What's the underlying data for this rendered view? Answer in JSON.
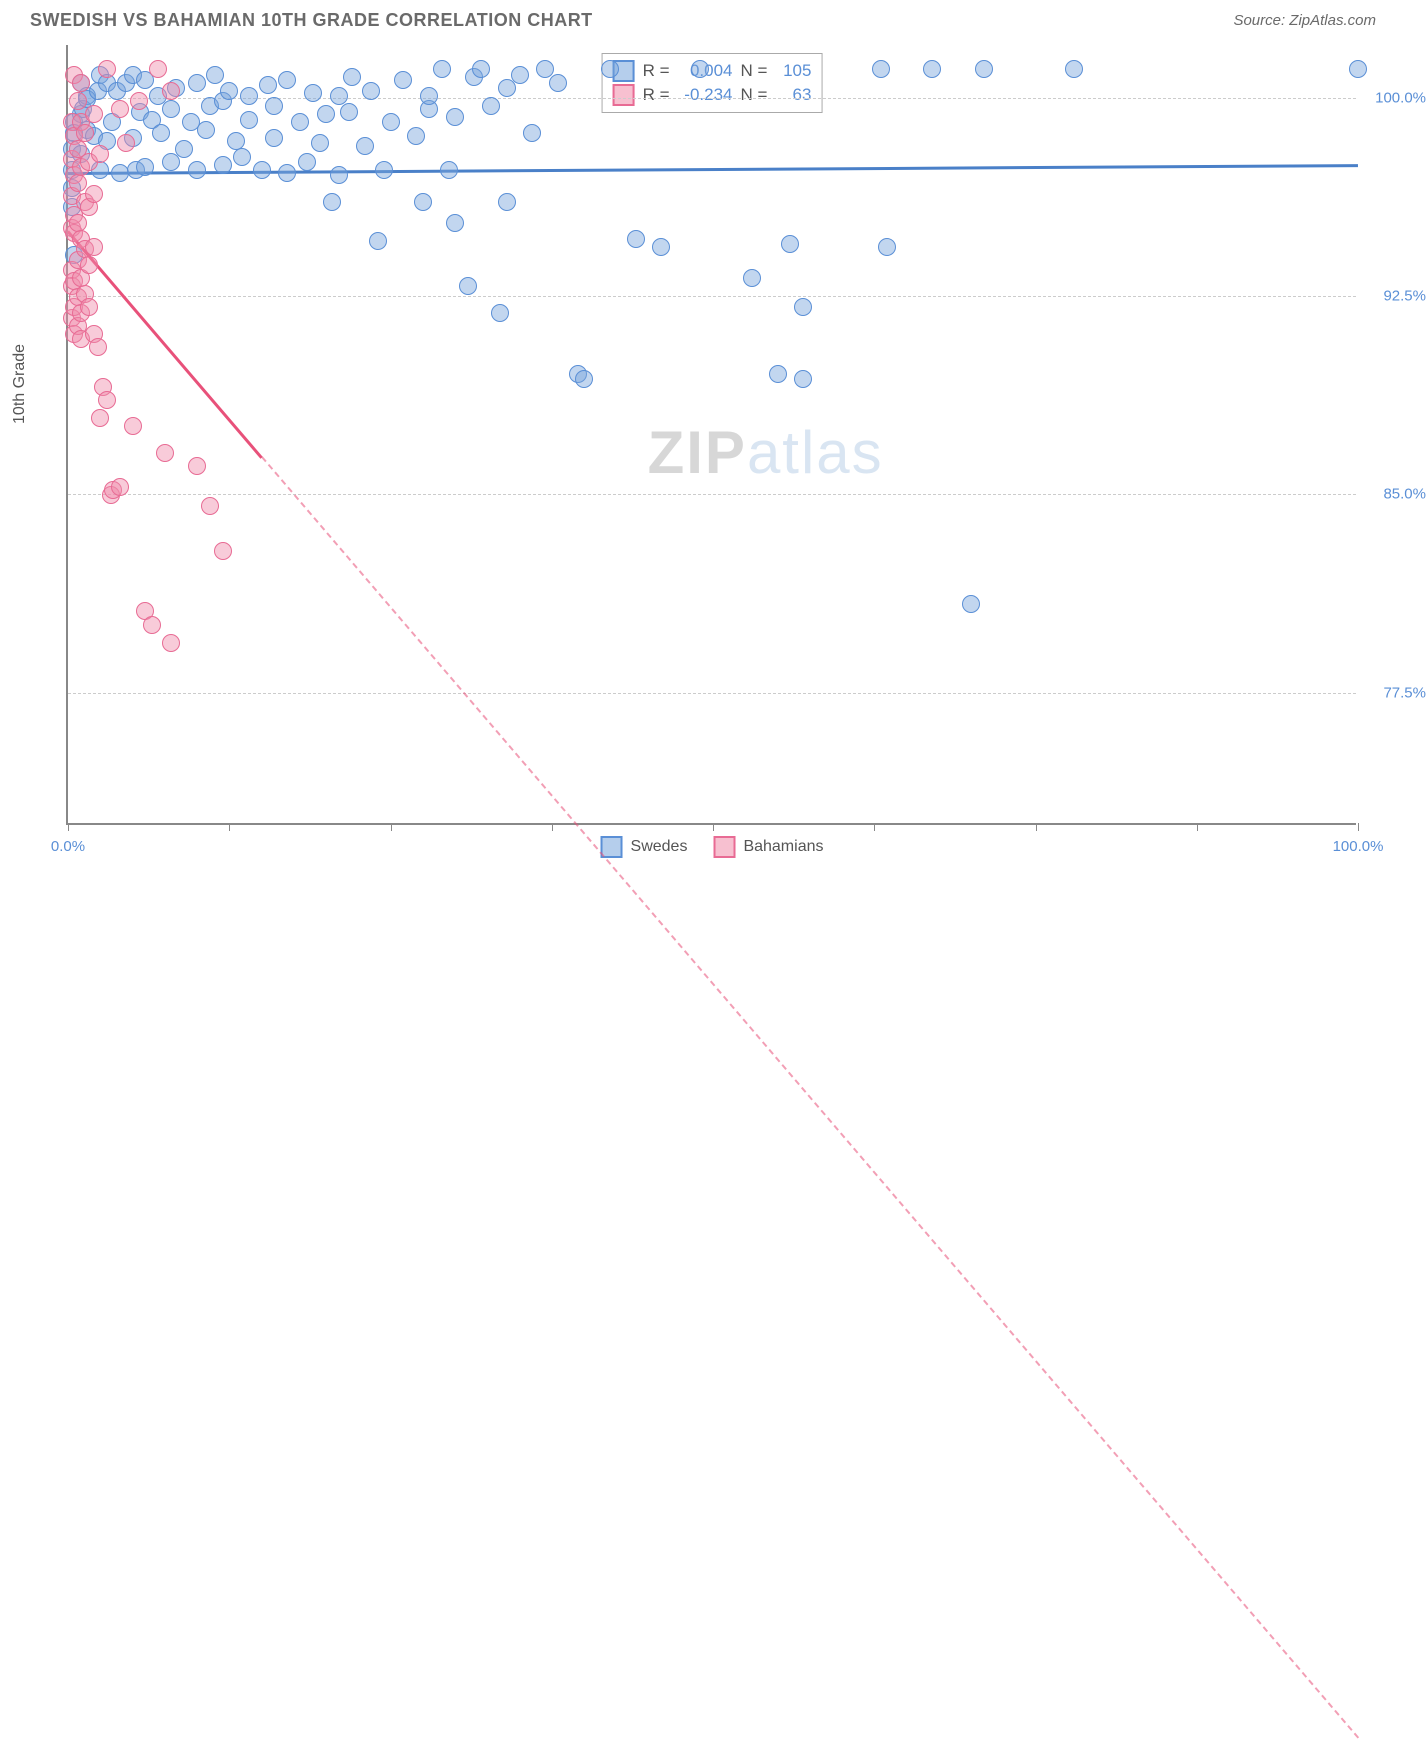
{
  "header": {
    "title": "SWEDISH VS BAHAMIAN 10TH GRADE CORRELATION CHART",
    "source": "Source: ZipAtlas.com"
  },
  "chart": {
    "type": "scatter",
    "ylabel": "10th Grade",
    "xlim": [
      0,
      100
    ],
    "ylim": [
      72.5,
      102
    ],
    "xticks": [
      0,
      12.5,
      25,
      37.5,
      50,
      62.5,
      75,
      87.5,
      100
    ],
    "xtick_labels": {
      "0": "0.0%",
      "100": "100.0%"
    },
    "yticks": [
      77.5,
      85.0,
      92.5,
      100.0
    ],
    "ytick_labels": [
      "77.5%",
      "85.0%",
      "92.5%",
      "100.0%"
    ],
    "background_color": "#ffffff",
    "grid_color": "#cccccc",
    "axis_color": "#888888",
    "label_fontsize": 16,
    "tick_color": "#5a8fd6",
    "watermark": {
      "bold": "ZIP",
      "light": "atlas"
    },
    "series": [
      {
        "name": "Swedes",
        "marker_color_fill": "rgba(120,165,220,0.45)",
        "marker_color_stroke": "#5a8fd6",
        "marker_size": 18,
        "trend": {
          "y": 97.2,
          "slope": 0.003,
          "color": "#4a80c8",
          "solid_until": 100
        },
        "R": "0.004",
        "N": "105",
        "legend_fill": "rgba(120,165,220,0.55)",
        "legend_stroke": "#5a8fd6",
        "points": [
          [
            0.3,
            97.2
          ],
          [
            0.3,
            96.5
          ],
          [
            0.3,
            95.8
          ],
          [
            0.3,
            98.0
          ],
          [
            0.5,
            99.0
          ],
          [
            0.5,
            94.0
          ],
          [
            0.5,
            98.6
          ],
          [
            1,
            97.8
          ],
          [
            1,
            99.3
          ],
          [
            1,
            100.5
          ],
          [
            1.2,
            99.5
          ],
          [
            1.5,
            100.0
          ],
          [
            1.5,
            98.7
          ],
          [
            1.5,
            99.9
          ],
          [
            2,
            98.5
          ],
          [
            2.3,
            100.2
          ],
          [
            2.5,
            97.2
          ],
          [
            2.5,
            100.8
          ],
          [
            3,
            98.3
          ],
          [
            3,
            100.5
          ],
          [
            3.4,
            99.0
          ],
          [
            3.8,
            100.2
          ],
          [
            4,
            97.1
          ],
          [
            4.5,
            100.5
          ],
          [
            5,
            98.4
          ],
          [
            5,
            100.8
          ],
          [
            5.3,
            97.2
          ],
          [
            5.6,
            99.4
          ],
          [
            6,
            100.6
          ],
          [
            6,
            97.3
          ],
          [
            6.5,
            99.1
          ],
          [
            7,
            100.0
          ],
          [
            7.2,
            98.6
          ],
          [
            8,
            97.5
          ],
          [
            8,
            99.5
          ],
          [
            8.4,
            100.3
          ],
          [
            9,
            98.0
          ],
          [
            9.5,
            99.0
          ],
          [
            10,
            100.5
          ],
          [
            10,
            97.2
          ],
          [
            10.7,
            98.7
          ],
          [
            11,
            99.6
          ],
          [
            11.4,
            100.8
          ],
          [
            12,
            97.4
          ],
          [
            12,
            99.8
          ],
          [
            12.5,
            100.2
          ],
          [
            13,
            98.3
          ],
          [
            13.5,
            97.7
          ],
          [
            14,
            100.0
          ],
          [
            14,
            99.1
          ],
          [
            15,
            97.2
          ],
          [
            15.5,
            100.4
          ],
          [
            16,
            98.4
          ],
          [
            16,
            99.6
          ],
          [
            17,
            97.1
          ],
          [
            17,
            100.6
          ],
          [
            18,
            99.0
          ],
          [
            18.5,
            97.5
          ],
          [
            19,
            100.1
          ],
          [
            19.5,
            98.2
          ],
          [
            20,
            99.3
          ],
          [
            20.5,
            96.0
          ],
          [
            21,
            100.0
          ],
          [
            21,
            97.0
          ],
          [
            21.8,
            99.4
          ],
          [
            22,
            100.7
          ],
          [
            23,
            98.1
          ],
          [
            23.5,
            100.2
          ],
          [
            24,
            94.5
          ],
          [
            24.5,
            97.2
          ],
          [
            25,
            99.0
          ],
          [
            26,
            100.6
          ],
          [
            27,
            98.5
          ],
          [
            27.5,
            96.0
          ],
          [
            28,
            99.5
          ],
          [
            28,
            100.0
          ],
          [
            29,
            101.0
          ],
          [
            29.5,
            97.2
          ],
          [
            30,
            99.2
          ],
          [
            30,
            95.2
          ],
          [
            31,
            92.8
          ],
          [
            31.5,
            100.7
          ],
          [
            32,
            101.0
          ],
          [
            32.8,
            99.6
          ],
          [
            33.5,
            91.8
          ],
          [
            34,
            96.0
          ],
          [
            34,
            100.3
          ],
          [
            35,
            100.8
          ],
          [
            36,
            98.6
          ],
          [
            37,
            101.0
          ],
          [
            38,
            100.5
          ],
          [
            39.5,
            89.5
          ],
          [
            40,
            89.3
          ],
          [
            42,
            101.0
          ],
          [
            44,
            94.6
          ],
          [
            46,
            94.3
          ],
          [
            49,
            101.0
          ],
          [
            53,
            93.1
          ],
          [
            55,
            89.5
          ],
          [
            56,
            94.4
          ],
          [
            57,
            92.0
          ],
          [
            57,
            89.3
          ],
          [
            63,
            101.0
          ],
          [
            63.5,
            94.3
          ],
          [
            67,
            101.0
          ],
          [
            71,
            101.0
          ],
          [
            70,
            80.8
          ],
          [
            78,
            101.0
          ],
          [
            100,
            101.0
          ]
        ]
      },
      {
        "name": "Bahamians",
        "marker_color_fill": "rgba(240,140,170,0.45)",
        "marker_color_stroke": "#e86b94",
        "marker_size": 18,
        "trend": {
          "y": 95.0,
          "slope": -0.57,
          "color": "#e8517a",
          "solid_until": 15
        },
        "R": "-0.234",
        "N": "63",
        "legend_fill": "rgba(240,140,170,0.55)",
        "legend_stroke": "#e86b94",
        "points": [
          [
            0.3,
            99.0
          ],
          [
            0.3,
            97.6
          ],
          [
            0.3,
            96.2
          ],
          [
            0.3,
            95.0
          ],
          [
            0.3,
            93.4
          ],
          [
            0.3,
            92.8
          ],
          [
            0.3,
            91.6
          ],
          [
            0.5,
            100.8
          ],
          [
            0.5,
            98.5
          ],
          [
            0.5,
            97.0
          ],
          [
            0.5,
            95.5
          ],
          [
            0.5,
            94.8
          ],
          [
            0.5,
            93.0
          ],
          [
            0.5,
            92.0
          ],
          [
            0.5,
            91.0
          ],
          [
            0.8,
            99.8
          ],
          [
            0.8,
            98.0
          ],
          [
            0.8,
            96.7
          ],
          [
            0.8,
            95.2
          ],
          [
            0.8,
            93.8
          ],
          [
            0.8,
            92.4
          ],
          [
            0.8,
            91.3
          ],
          [
            1.0,
            100.5
          ],
          [
            1.0,
            99.0
          ],
          [
            1.0,
            97.3
          ],
          [
            1.0,
            94.6
          ],
          [
            1.0,
            93.1
          ],
          [
            1.0,
            91.8
          ],
          [
            1.0,
            90.8
          ],
          [
            1.3,
            98.6
          ],
          [
            1.3,
            96.0
          ],
          [
            1.3,
            94.2
          ],
          [
            1.3,
            92.5
          ],
          [
            1.6,
            97.5
          ],
          [
            1.6,
            95.8
          ],
          [
            1.6,
            93.6
          ],
          [
            1.6,
            92.0
          ],
          [
            2.0,
            99.3
          ],
          [
            2.0,
            96.3
          ],
          [
            2.0,
            94.3
          ],
          [
            2.0,
            91.0
          ],
          [
            2.3,
            90.5
          ],
          [
            2.5,
            97.8
          ],
          [
            2.5,
            87.8
          ],
          [
            2.7,
            89.0
          ],
          [
            3.0,
            88.5
          ],
          [
            3.0,
            101.0
          ],
          [
            3.3,
            84.9
          ],
          [
            3.5,
            85.1
          ],
          [
            4.0,
            99.5
          ],
          [
            4.0,
            85.2
          ],
          [
            4.5,
            98.2
          ],
          [
            5.0,
            87.5
          ],
          [
            5.5,
            99.8
          ],
          [
            6.0,
            80.5
          ],
          [
            6.5,
            80.0
          ],
          [
            7.0,
            101.0
          ],
          [
            7.5,
            86.5
          ],
          [
            8.0,
            79.3
          ],
          [
            8,
            100.2
          ],
          [
            10,
            86.0
          ],
          [
            11,
            84.5
          ],
          [
            12,
            82.8
          ]
        ]
      }
    ],
    "legend": {
      "items": [
        "Swedes",
        "Bahamians"
      ]
    },
    "stats_labels": {
      "R": "R =",
      "N": "N ="
    }
  }
}
